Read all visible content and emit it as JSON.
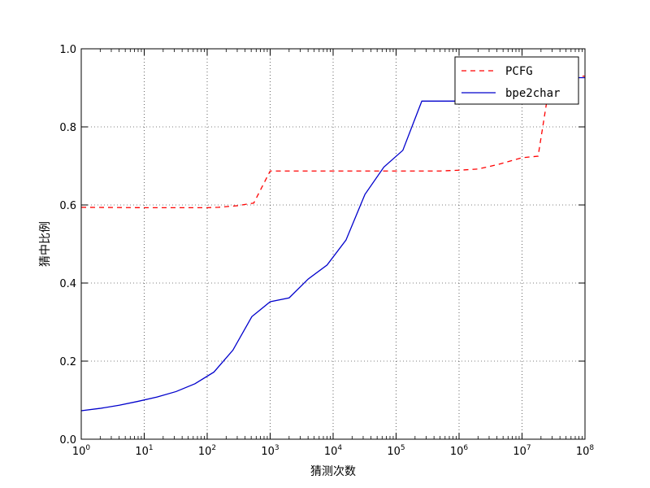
{
  "chart_data": {
    "type": "line",
    "xlabel": "猜测次数",
    "ylabel": "猜中比例",
    "x_scale": "log",
    "xlim": [
      1,
      100000000
    ],
    "ylim": [
      0,
      1.0
    ],
    "grid": true,
    "legend_position": "top-right",
    "x_ticks": [
      {
        "base": "10",
        "exp": "0"
      },
      {
        "base": "10",
        "exp": "1"
      },
      {
        "base": "10",
        "exp": "2"
      },
      {
        "base": "10",
        "exp": "3"
      },
      {
        "base": "10",
        "exp": "4"
      },
      {
        "base": "10",
        "exp": "5"
      },
      {
        "base": "10",
        "exp": "6"
      },
      {
        "base": "10",
        "exp": "7"
      },
      {
        "base": "10",
        "exp": "8"
      }
    ],
    "y_ticks": [
      "0.0",
      "0.2",
      "0.4",
      "0.6",
      "0.8",
      "1.0"
    ],
    "series": [
      {
        "name": "PCFG",
        "color": "#ff0000",
        "style": "dashed",
        "points": [
          [
            1,
            0.594
          ],
          [
            10,
            0.593
          ],
          [
            100,
            0.593
          ],
          [
            150,
            0.594
          ],
          [
            300,
            0.598
          ],
          [
            550,
            0.605
          ],
          [
            1000,
            0.687
          ],
          [
            2000,
            0.687
          ],
          [
            10000,
            0.687
          ],
          [
            100000,
            0.687
          ],
          [
            500000,
            0.687
          ],
          [
            1000000,
            0.689
          ],
          [
            2000000,
            0.692
          ],
          [
            4000000,
            0.703
          ],
          [
            10000000,
            0.721
          ],
          [
            18000000,
            0.725
          ],
          [
            25000000,
            0.87
          ],
          [
            30000000,
            0.93
          ],
          [
            100000000,
            0.93
          ]
        ]
      },
      {
        "name": "bpe2char",
        "color": "#0000cc",
        "style": "solid",
        "points": [
          [
            1,
            0.073
          ],
          [
            2,
            0.079
          ],
          [
            4,
            0.087
          ],
          [
            8,
            0.097
          ],
          [
            16,
            0.108
          ],
          [
            32,
            0.122
          ],
          [
            64,
            0.142
          ],
          [
            128,
            0.172
          ],
          [
            256,
            0.228
          ],
          [
            512,
            0.314
          ],
          [
            1000,
            0.352
          ],
          [
            2000,
            0.362
          ],
          [
            4000,
            0.41
          ],
          [
            8000,
            0.446
          ],
          [
            16000,
            0.51
          ],
          [
            32000,
            0.627
          ],
          [
            64000,
            0.697
          ],
          [
            128000,
            0.74
          ],
          [
            256000,
            0.866
          ],
          [
            1000000,
            0.866
          ],
          [
            3000000,
            0.866
          ],
          [
            30000000,
            0.926
          ],
          [
            100000000,
            0.926
          ]
        ]
      }
    ]
  }
}
